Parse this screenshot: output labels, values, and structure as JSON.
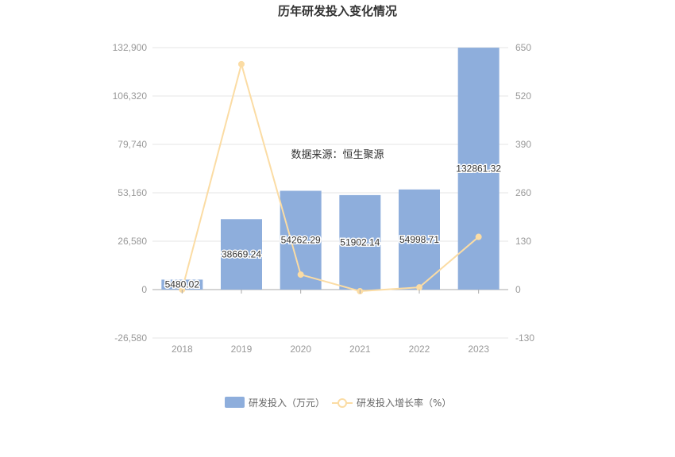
{
  "chart_data": {
    "type": "bar",
    "title": "历年研发投入变化情况",
    "source_note": "数据来源：恒生聚源",
    "categories": [
      "2018",
      "2019",
      "2020",
      "2021",
      "2022",
      "2023"
    ],
    "series": [
      {
        "name": "研发投入（万元）",
        "type": "bar",
        "axis": "left",
        "values": [
          5480.02,
          38669.24,
          54262.29,
          51902.14,
          54998.71,
          132861.32
        ],
        "labels": [
          "5480.02",
          "38669.24",
          "54262.29",
          "51902.14",
          "54998.71",
          "132861.32"
        ],
        "color": "#8eaedc"
      },
      {
        "name": "研发投入增长率（%）",
        "type": "line",
        "axis": "right",
        "values": [
          0,
          605.6,
          40.3,
          -4.3,
          6.0,
          141.6
        ],
        "color": "#fbdca4"
      }
    ],
    "y_left": {
      "ticks": [
        -26580,
        0,
        26580,
        53160,
        79740,
        106320,
        132900
      ],
      "tick_labels": [
        "-26,580",
        "0",
        "26,580",
        "53,160",
        "79,740",
        "106,320",
        "132,900"
      ],
      "ylim": [
        -26580,
        132900
      ]
    },
    "y_right": {
      "ticks": [
        -130,
        0,
        130,
        260,
        390,
        520,
        650
      ],
      "tick_labels": [
        "-130",
        "0",
        "130",
        "260",
        "390",
        "520",
        "650"
      ],
      "ylim": [
        -130,
        650
      ]
    },
    "grid": true,
    "legend_position": "bottom"
  }
}
